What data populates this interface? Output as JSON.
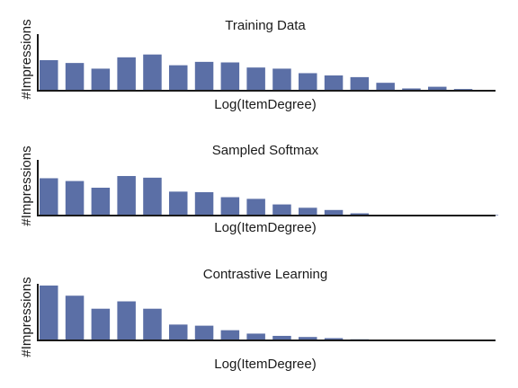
{
  "bar_color": "#5b6fa6",
  "axis_color": "#1a1a1a",
  "chart_data": [
    {
      "type": "bar",
      "title": "Training Data",
      "xlabel": "Log(ItemDegree)",
      "ylabel": "#Impressions",
      "ylim": [
        0,
        1.0
      ],
      "values": [
        0.54,
        0.49,
        0.39,
        0.59,
        0.64,
        0.45,
        0.51,
        0.5,
        0.41,
        0.39,
        0.31,
        0.27,
        0.24,
        0.14,
        0.04,
        0.07,
        0.03,
        0.0,
        0.0
      ]
    },
    {
      "type": "bar",
      "title": "Sampled Softmax",
      "xlabel": "Log(ItemDegree)",
      "ylabel": "#Impressions",
      "ylim": [
        0,
        1.0
      ],
      "values": [
        0.67,
        0.62,
        0.5,
        0.71,
        0.68,
        0.43,
        0.42,
        0.33,
        0.3,
        0.2,
        0.14,
        0.1,
        0.04,
        0.0,
        0.0,
        0.0,
        0.0,
        0.01,
        0.0
      ]
    },
    {
      "type": "bar",
      "title": "Contrastive Learning",
      "xlabel": "Log(ItemDegree)",
      "ylabel": "#Impressions",
      "ylim": [
        0,
        1.0
      ],
      "values": [
        0.97,
        0.79,
        0.56,
        0.69,
        0.56,
        0.28,
        0.26,
        0.18,
        0.12,
        0.08,
        0.06,
        0.04,
        0.02,
        0.0,
        0.0,
        0.0,
        0.0,
        0.0,
        0.0
      ]
    }
  ]
}
